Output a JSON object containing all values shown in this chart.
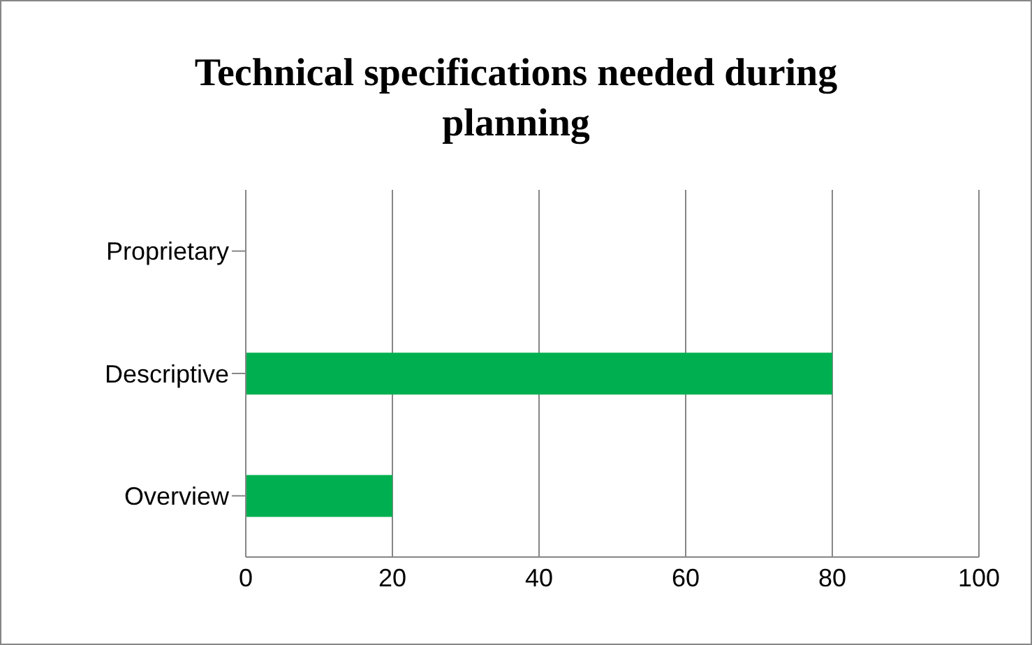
{
  "chart_data": {
    "type": "bar",
    "orientation": "horizontal",
    "title": "Technical specifications needed during planning",
    "categories": [
      "Proprietary",
      "Descriptive",
      "Overview"
    ],
    "values": [
      0,
      80,
      20
    ],
    "color": "#00b050",
    "xlim": [
      0,
      100
    ],
    "xticks": [
      0,
      20,
      40,
      60,
      80,
      100
    ],
    "grid": "x"
  }
}
